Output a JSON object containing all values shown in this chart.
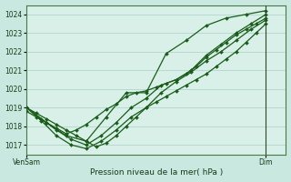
{
  "bg_color": "#c8e8e0",
  "plot_bg_color": "#d8f0e8",
  "grid_color": "#a0c8c0",
  "line_color": "#1a5c1a",
  "title": "Pression niveau de la mer( hPa )",
  "xlabel_left": "VenSam",
  "xlabel_right": "Dim",
  "ylim": [
    1016.5,
    1024.5
  ],
  "yticks": [
    1017,
    1018,
    1019,
    1020,
    1021,
    1022,
    1023,
    1024
  ],
  "xlim": [
    0,
    52
  ],
  "vline_x": 48,
  "series": [
    {
      "x": [
        0,
        2,
        4,
        6,
        8,
        10,
        12,
        14,
        16,
        18,
        20,
        22,
        24,
        26,
        28,
        30,
        32,
        34,
        36,
        38,
        40,
        42,
        44,
        46,
        48
      ],
      "y": [
        1019.0,
        1018.7,
        1018.4,
        1018.1,
        1017.8,
        1017.5,
        1017.2,
        1016.9,
        1017.1,
        1017.5,
        1018.0,
        1018.5,
        1019.0,
        1019.3,
        1019.6,
        1019.9,
        1020.2,
        1020.5,
        1020.8,
        1021.2,
        1021.6,
        1022.0,
        1022.5,
        1023.0,
        1023.5
      ]
    },
    {
      "x": [
        0,
        2,
        4,
        6,
        8,
        10,
        12,
        14,
        16,
        18,
        20,
        22,
        24,
        26,
        28,
        30,
        32,
        34,
        36,
        38,
        40,
        42,
        44,
        46,
        48
      ],
      "y": [
        1018.8,
        1018.5,
        1018.2,
        1017.9,
        1017.6,
        1017.8,
        1018.1,
        1018.5,
        1018.9,
        1019.2,
        1019.6,
        1019.8,
        1019.9,
        1020.1,
        1020.3,
        1020.5,
        1020.8,
        1021.2,
        1021.7,
        1022.1,
        1022.5,
        1022.9,
        1023.2,
        1023.5,
        1023.8
      ]
    },
    {
      "x": [
        0,
        3,
        6,
        9,
        12,
        15,
        18,
        21,
        24,
        27,
        30,
        33,
        36,
        39,
        42,
        45,
        48
      ],
      "y": [
        1019.0,
        1018.3,
        1017.5,
        1017.0,
        1016.8,
        1017.2,
        1017.8,
        1018.5,
        1019.0,
        1019.8,
        1020.4,
        1020.9,
        1021.5,
        1022.0,
        1022.6,
        1023.2,
        1023.7
      ]
    },
    {
      "x": [
        0,
        3,
        6,
        9,
        12,
        15,
        18,
        21,
        24,
        27,
        30,
        33,
        36,
        39,
        42,
        45,
        48
      ],
      "y": [
        1019.0,
        1018.4,
        1017.8,
        1017.3,
        1017.0,
        1017.5,
        1018.2,
        1019.0,
        1019.5,
        1020.2,
        1020.5,
        1021.0,
        1021.8,
        1022.4,
        1023.0,
        1023.5,
        1024.0
      ]
    },
    {
      "x": [
        0,
        4,
        8,
        12,
        16,
        20,
        24,
        28,
        32,
        36,
        40,
        44,
        48
      ],
      "y": [
        1019.0,
        1018.2,
        1017.5,
        1017.2,
        1018.5,
        1019.8,
        1019.8,
        1021.9,
        1022.6,
        1023.4,
        1023.8,
        1024.0,
        1024.2
      ]
    }
  ],
  "marker": "D",
  "markersize": 2.0,
  "linewidth": 0.9
}
